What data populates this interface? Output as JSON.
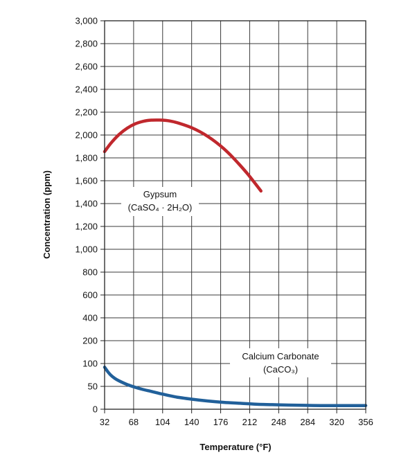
{
  "chart_data": {
    "type": "line",
    "title": "",
    "xlabel": "Temperature (°F)",
    "ylabel": "Concentration (ppm)",
    "x_ticks": [
      32,
      68,
      104,
      140,
      176,
      212,
      248,
      284,
      320,
      356
    ],
    "y_ticks": [
      "0",
      "50",
      "100",
      "200",
      "400",
      "600",
      "800",
      "1,000",
      "1,200",
      "1,400",
      "1,600",
      "1,800",
      "2,000",
      "2,200",
      "2,400",
      "2,600",
      "2,800",
      "3,000"
    ],
    "y_tick_values": [
      0,
      50,
      100,
      200,
      400,
      600,
      800,
      1000,
      1200,
      1400,
      1600,
      1800,
      2000,
      2200,
      2400,
      2600,
      2800,
      3000
    ],
    "xlim": [
      32,
      356
    ],
    "grid": true,
    "series": [
      {
        "name": "Gypsum (CaSO₄ · 2H₂O)",
        "color": "#c0282d",
        "x": [
          32,
          40,
          50,
          60,
          70,
          80,
          90,
          100,
          104,
          110,
          120,
          130,
          140,
          150,
          160,
          170,
          180,
          190,
          200,
          210,
          220,
          226
        ],
        "y": [
          1855,
          1930,
          2005,
          2060,
          2098,
          2120,
          2130,
          2131,
          2130,
          2126,
          2112,
          2090,
          2064,
          2030,
          1988,
          1938,
          1880,
          1812,
          1736,
          1655,
          1565,
          1510
        ]
      },
      {
        "name": "Calcium Carbonate (CaCO₃)",
        "color": "#21609a",
        "x": [
          32,
          36,
          40,
          45,
          50,
          60,
          70,
          80,
          90,
          104,
          120,
          140,
          160,
          180,
          200,
          220,
          240,
          260,
          280,
          300,
          320,
          340,
          356
        ],
        "y": [
          92,
          82,
          74,
          67,
          62,
          54,
          48,
          43,
          39,
          33,
          27,
          22,
          18,
          15,
          13,
          11,
          10,
          9,
          8.5,
          8,
          8,
          8,
          8
        ]
      }
    ],
    "annotations": [
      {
        "series": 0,
        "lines": [
          "Gypsum",
          "(CaSO₄ · 2H₂O)"
        ]
      },
      {
        "series": 1,
        "lines": [
          "Calcium Carbonate",
          "(CaCO₃)"
        ]
      }
    ]
  }
}
